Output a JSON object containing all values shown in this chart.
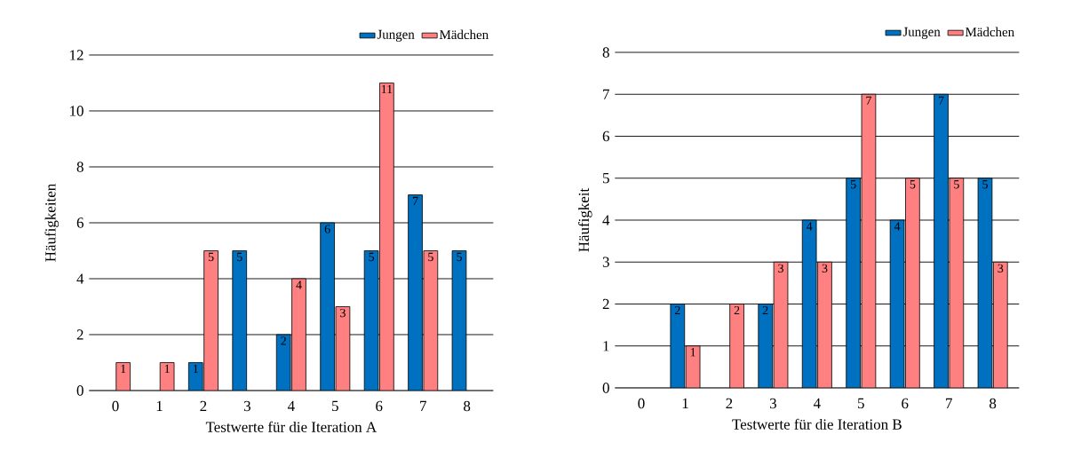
{
  "chart_data": [
    {
      "type": "bar",
      "categories": [
        "0",
        "1",
        "2",
        "3",
        "4",
        "5",
        "6",
        "7",
        "8"
      ],
      "xlabel": "Testwerte für die Iteration A",
      "ylabel": "Häufigkeiten",
      "ylim": [
        0,
        12
      ],
      "yticks": [
        0,
        2,
        4,
        6,
        8,
        10,
        12
      ],
      "grid": "y",
      "legend": "top right",
      "series": [
        {
          "name": "Jungen",
          "color": "#0070c0",
          "values": [
            0,
            0,
            1,
            5,
            2,
            6,
            5,
            7,
            5
          ],
          "value_labels": [
            null,
            null,
            "1",
            "5",
            "2",
            "6",
            "5",
            "7",
            "5"
          ]
        },
        {
          "name": "Mädchen",
          "color": "#ff8080",
          "values": [
            1,
            1,
            5,
            0,
            4,
            3,
            11,
            5,
            0
          ],
          "value_labels": [
            "1",
            "1",
            "5",
            null,
            "4",
            "3",
            "11",
            "5",
            null
          ]
        }
      ]
    },
    {
      "type": "bar",
      "categories": [
        "0",
        "1",
        "2",
        "3",
        "4",
        "5",
        "6",
        "7",
        "8"
      ],
      "xlabel": "Testwerte für die Iteration B",
      "ylabel": "Häufigkeit",
      "ylim": [
        0,
        8
      ],
      "yticks": [
        0,
        1,
        2,
        3,
        4,
        5,
        6,
        7,
        8
      ],
      "grid": "y",
      "legend": "top right",
      "series": [
        {
          "name": "Jungen",
          "color": "#0070c0",
          "values": [
            0,
            2,
            0,
            2,
            4,
            5,
            4,
            7,
            5
          ],
          "value_labels": [
            null,
            "2",
            null,
            "2",
            "4",
            "5",
            "4",
            "7",
            "5"
          ]
        },
        {
          "name": "Mädchen",
          "color": "#ff8080",
          "values": [
            0,
            1,
            2,
            3,
            3,
            7,
            5,
            5,
            3
          ],
          "value_labels": [
            null,
            "1",
            "2",
            "3",
            "3",
            "7",
            "5",
            "5",
            "3"
          ]
        }
      ]
    }
  ]
}
